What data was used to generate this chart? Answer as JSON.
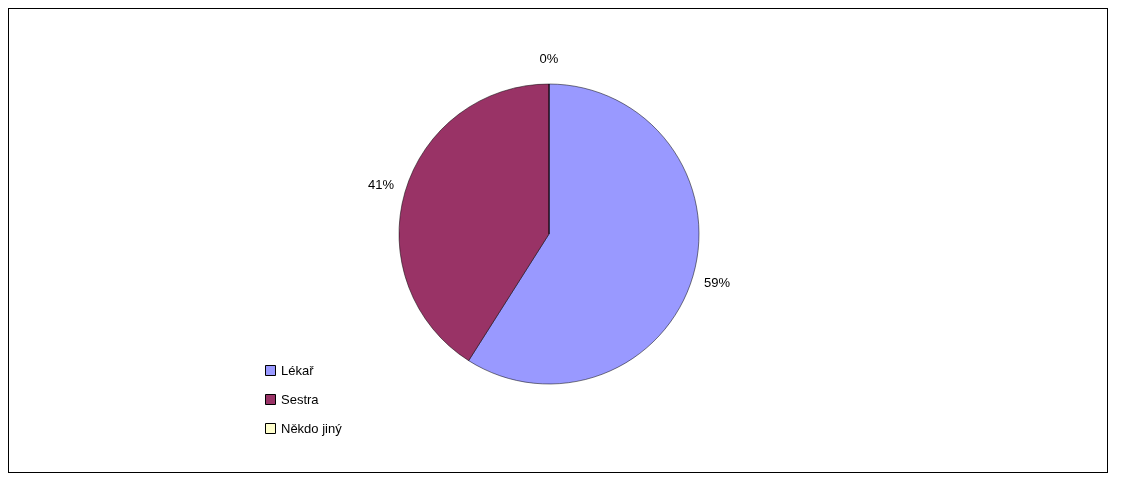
{
  "chart_data": {
    "type": "pie",
    "categories": [
      "Lékař",
      "Sestra",
      "Někdo jiný"
    ],
    "values": [
      59,
      41,
      0
    ],
    "colors": [
      "#9999ff",
      "#993366",
      "#ffffcc"
    ],
    "value_labels": [
      "59%",
      "41%",
      "0%"
    ],
    "legend": "bottom left"
  }
}
